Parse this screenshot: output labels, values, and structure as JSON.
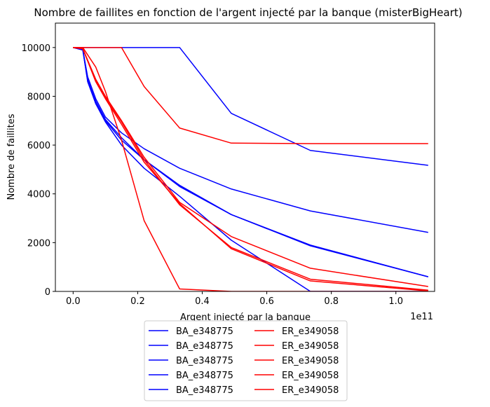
{
  "chart_data": {
    "type": "line",
    "title": "Nombre de faillites en fonction de l'argent injecté par la banque (misterBigHeart)",
    "xlabel": "Argent injecté par la banque",
    "ylabel": "Nombre de faillites",
    "x_offset_label": "1e11",
    "xlim": [
      -0.055,
      1.12
    ],
    "ylim": [
      0,
      11000
    ],
    "x_ticks": [
      0.0,
      0.2,
      0.4,
      0.6,
      0.8,
      1.0
    ],
    "x_tick_labels": [
      "0.0",
      "0.2",
      "0.4",
      "0.6",
      "0.8",
      "1.0"
    ],
    "y_ticks": [
      0,
      2000,
      4000,
      6000,
      8000,
      10000
    ],
    "y_tick_labels": [
      "0",
      "2000",
      "4000",
      "6000",
      "8000",
      "10000"
    ],
    "grid": false,
    "legend_placement": "below plot, 2 columns",
    "colors": {
      "BA": "#0000ff",
      "ER": "#ff0000"
    },
    "series": [
      {
        "name": "BA_e348775",
        "color": "#0000ff",
        "x": [
          0.0,
          0.03,
          0.045,
          0.07,
          0.1,
          0.15,
          0.22,
          0.33,
          0.49,
          0.735,
          1.1
        ],
        "y": [
          10000,
          9900,
          8700,
          7700,
          7000,
          6200,
          5400,
          4350,
          3150,
          1900,
          600
        ]
      },
      {
        "name": "BA_e348775",
        "color": "#0000ff",
        "x": [
          0.0,
          0.03,
          0.045,
          0.07,
          0.1,
          0.15,
          0.22,
          0.33,
          0.49,
          0.735,
          1.1
        ],
        "y": [
          10000,
          9900,
          8800,
          7900,
          7150,
          6500,
          5850,
          5050,
          4200,
          3300,
          2420
        ]
      },
      {
        "name": "BA_e348775",
        "color": "#0000ff",
        "x": [
          0.0,
          0.03,
          0.045,
          0.07,
          0.1,
          0.15,
          0.22,
          0.33,
          0.49,
          0.735,
          1.1
        ],
        "y": [
          10000,
          9900,
          8650,
          7800,
          7050,
          6300,
          5400,
          4300,
          3150,
          1870,
          600
        ]
      },
      {
        "name": "BA_e348775",
        "color": "#0000ff",
        "x": [
          0.0,
          0.03,
          0.045,
          0.07,
          0.1,
          0.15,
          0.22,
          0.33,
          0.49,
          0.735,
          1.1
        ],
        "y": [
          10000,
          9900,
          8600,
          7700,
          6950,
          6000,
          5050,
          3900,
          2100,
          0,
          0
        ]
      },
      {
        "name": "BA_e348775",
        "color": "#0000ff",
        "x": [
          0.0,
          0.03,
          0.1,
          0.15,
          0.22,
          0.33,
          0.49,
          0.735,
          1.1
        ],
        "y": [
          10000,
          10000,
          10000,
          10000,
          10000,
          10000,
          7300,
          5780,
          5170
        ]
      },
      {
        "name": "ER_e349058",
        "color": "#ff0000",
        "x": [
          0.0,
          0.03,
          0.07,
          0.1,
          0.15,
          0.22,
          0.33,
          0.49,
          0.735,
          1.1
        ],
        "y": [
          10000,
          10000,
          10000,
          10000,
          10000,
          8400,
          6700,
          6080,
          6060,
          6060
        ]
      },
      {
        "name": "ER_e349058",
        "color": "#ff0000",
        "x": [
          0.0,
          0.03,
          0.07,
          0.1,
          0.15,
          0.22,
          0.33,
          0.49,
          0.735,
          1.1
        ],
        "y": [
          10000,
          9950,
          8700,
          8000,
          7000,
          5500,
          3650,
          2250,
          950,
          200
        ]
      },
      {
        "name": "ER_e349058",
        "color": "#ff0000",
        "x": [
          0.0,
          0.03,
          0.07,
          0.1,
          0.15,
          0.22,
          0.33,
          0.49,
          0.735,
          1.1
        ],
        "y": [
          10000,
          9950,
          8650,
          7950,
          6950,
          5400,
          3550,
          1800,
          500,
          50
        ]
      },
      {
        "name": "ER_e349058",
        "color": "#ff0000",
        "x": [
          0.0,
          0.03,
          0.07,
          0.1,
          0.15,
          0.22,
          0.33,
          0.49,
          0.735,
          1.1
        ],
        "y": [
          10000,
          9950,
          8600,
          7900,
          6850,
          5300,
          3600,
          1750,
          430,
          20
        ]
      },
      {
        "name": "ER_e349058",
        "color": "#ff0000",
        "x": [
          0.0,
          0.03,
          0.07,
          0.1,
          0.15,
          0.22,
          0.33,
          0.49,
          0.735,
          1.1
        ],
        "y": [
          10000,
          10000,
          9200,
          8200,
          6200,
          2900,
          100,
          0,
          0,
          0
        ]
      }
    ]
  }
}
